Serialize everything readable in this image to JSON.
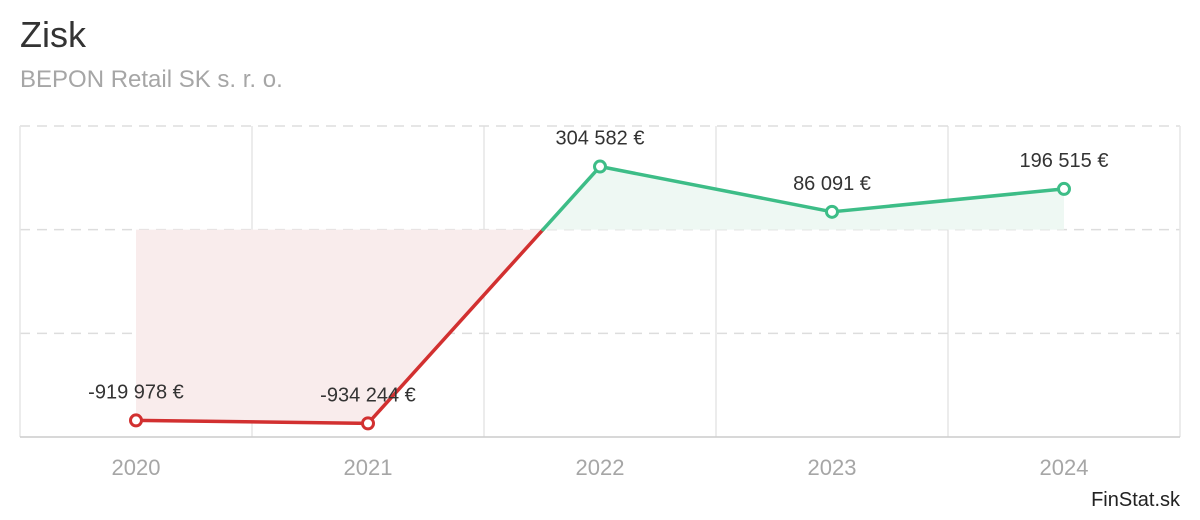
{
  "header": {
    "title": "Zisk",
    "subtitle": "BEPON Retail SK s. r. o."
  },
  "brand": "FinStat.sk",
  "colors": {
    "positive": "#3dbd87",
    "negative": "#d23030",
    "positive_fill": "#eef8f3",
    "negative_fill": "#f9ecec",
    "grid": "#dddddd",
    "tick_label": "#a6a6a6"
  },
  "chart_data": {
    "type": "line",
    "title": "Zisk",
    "subtitle": "BEPON Retail SK s. r. o.",
    "xlabel": "",
    "ylabel": "",
    "categories": [
      "2020",
      "2021",
      "2022",
      "2023",
      "2024"
    ],
    "values": [
      -919978,
      -934244,
      304582,
      86091,
      196515
    ],
    "data_labels": [
      "-919 978 €",
      "-934 244 €",
      "304 582 €",
      "86 091 €",
      "196 515 €"
    ],
    "ylim": [
      -1000000,
      500000
    ],
    "grid": true,
    "fill_to_zero": true
  }
}
